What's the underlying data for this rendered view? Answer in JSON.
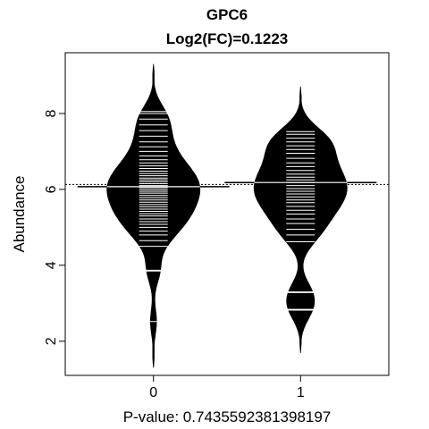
{
  "chart_data": {
    "type": "beanplot",
    "title": "GPC6",
    "subtitle": "Log2(FC)=0.1223",
    "xlabel": "P-value: 0.7435592381398197",
    "ylabel": "Abundance",
    "categories": [
      "0",
      "1"
    ],
    "yticks": [
      "2",
      "4",
      "6",
      "8"
    ],
    "ylim": [
      1.1,
      9.6
    ],
    "xlim": [
      -0.6,
      1.6
    ],
    "overall_mean": 6.13,
    "grid": false,
    "legend": "none",
    "groups": [
      {
        "name": "0",
        "mean": 6.07,
        "density_range": [
          1.3,
          9.3
        ],
        "observations": [
          2.52,
          3.85,
          3.87,
          4.5,
          4.65,
          4.8,
          4.9,
          5.0,
          5.08,
          5.15,
          5.22,
          5.3,
          5.36,
          5.42,
          5.48,
          5.54,
          5.6,
          5.66,
          5.72,
          5.78,
          5.84,
          5.9,
          5.95,
          6.0,
          6.05,
          6.1,
          6.15,
          6.2,
          6.25,
          6.3,
          6.36,
          6.42,
          6.48,
          6.55,
          6.62,
          6.7,
          6.78,
          6.88,
          7.0,
          7.12,
          7.25,
          7.4,
          7.55,
          7.7,
          7.85,
          8.0,
          8.05
        ]
      },
      {
        "name": "1",
        "mean": 6.18,
        "density_range": [
          1.7,
          8.7
        ],
        "observations": [
          2.82,
          2.84,
          3.28,
          3.3,
          4.62,
          4.8,
          4.95,
          5.1,
          5.22,
          5.35,
          5.45,
          5.55,
          5.65,
          5.72,
          5.8,
          5.88,
          5.95,
          6.02,
          6.1,
          6.18,
          6.25,
          6.32,
          6.4,
          6.5,
          6.6,
          6.7,
          6.82,
          6.95,
          7.05,
          7.15,
          7.25,
          7.35,
          7.45,
          7.52
        ]
      }
    ]
  }
}
